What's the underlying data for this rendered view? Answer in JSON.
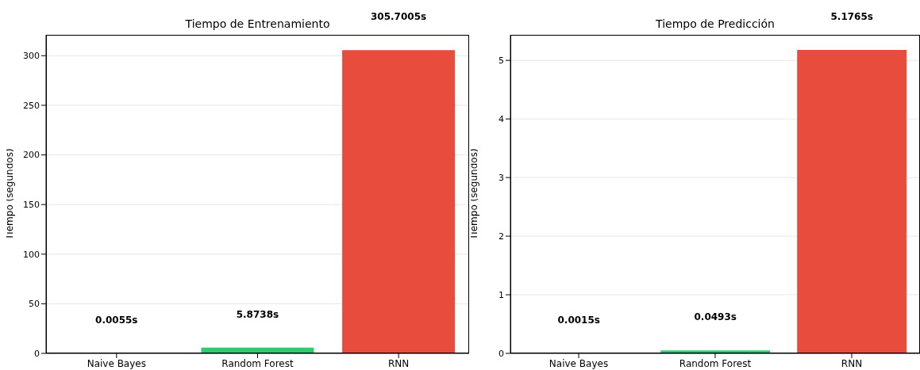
{
  "chart_data": [
    {
      "type": "bar",
      "title": "Tiempo de Entrenamiento",
      "ylabel": "Tiempo (segundos)",
      "categories": [
        "Naive Bayes",
        "Random Forest",
        "RNN"
      ],
      "values": [
        0.0055,
        5.8738,
        305.7005
      ],
      "colors": [
        "#3498db",
        "#2ecc71",
        "#e74c3c"
      ],
      "value_labels": [
        "0.0055s",
        "5.8738s",
        "305.7005s"
      ],
      "ylim": [
        0,
        321
      ],
      "yticks": [
        0,
        50,
        100,
        150,
        200,
        250,
        300
      ],
      "grid": "y",
      "legend": false
    },
    {
      "type": "bar",
      "title": "Tiempo de Predicción",
      "ylabel": "Tiempo (segundos)",
      "categories": [
        "Naive Bayes",
        "Random Forest",
        "RNN"
      ],
      "values": [
        0.0015,
        0.0493,
        5.1765
      ],
      "colors": [
        "#3498db",
        "#2ecc71",
        "#e74c3c"
      ],
      "value_labels": [
        "0.0015s",
        "0.0493s",
        "5.1765s"
      ],
      "ylim": [
        0,
        5.435
      ],
      "yticks": [
        0,
        1,
        2,
        3,
        4,
        5
      ],
      "grid": "y",
      "legend": false
    }
  ]
}
